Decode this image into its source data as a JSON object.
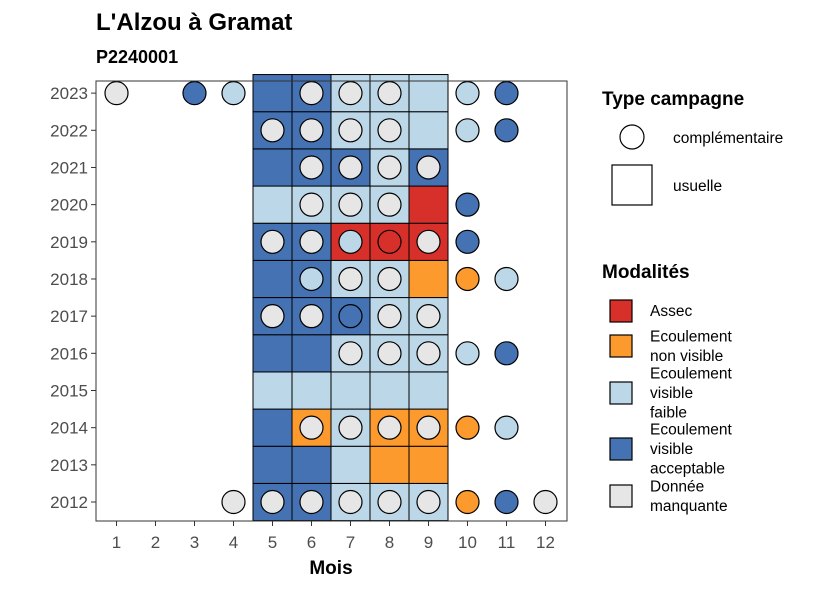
{
  "chart_data": {
    "type": "heatmap",
    "title": "L'Alzou à Gramat",
    "subtitle": "P2240001",
    "xlabel": "Mois",
    "ylabel": "",
    "x": [
      "1",
      "2",
      "3",
      "4",
      "5",
      "6",
      "7",
      "8",
      "9",
      "10",
      "11",
      "12"
    ],
    "y": [
      "2012",
      "2013",
      "2014",
      "2015",
      "2016",
      "2017",
      "2018",
      "2019",
      "2020",
      "2021",
      "2022",
      "2023"
    ],
    "colors": {
      "Assec": "#d7302a",
      "Ecoulement non visible": "#fc9a2e",
      "Ecoulement visible faible": "#bcd7e8",
      "Ecoulement visible acceptable": "#4472b3",
      "Donnée manquante": "#e6e6e6"
    },
    "legend": {
      "type_title": "Type campagne",
      "type_items": [
        "complémentaire",
        "usuelle"
      ],
      "mod_title": "Modalités",
      "mod_items": [
        {
          "lines": [
            "Assec"
          ],
          "color": "#d7302a"
        },
        {
          "lines": [
            "Ecoulement",
            "non visible"
          ],
          "color": "#fc9a2e"
        },
        {
          "lines": [
            "Ecoulement",
            "visible",
            "faible"
          ],
          "color": "#bcd7e8"
        },
        {
          "lines": [
            "Ecoulement",
            "visible",
            "acceptable"
          ],
          "color": "#4472b3"
        },
        {
          "lines": [
            "Donnée",
            "manquante"
          ],
          "color": "#e6e6e6"
        }
      ]
    },
    "usuelle": {
      "2012": [
        "#4472b3",
        "#4472b3",
        "#bcd7e8",
        "#bcd7e8",
        "#bcd7e8"
      ],
      "2013": [
        "#4472b3",
        "#4472b3",
        "#bcd7e8",
        "#fc9a2e",
        "#fc9a2e"
      ],
      "2014": [
        "#4472b3",
        "#fc9a2e",
        "#bcd7e8",
        "#fc9a2e",
        "#fc9a2e"
      ],
      "2015": [
        "#bcd7e8",
        "#bcd7e8",
        "#bcd7e8",
        "#bcd7e8",
        "#bcd7e8"
      ],
      "2016": [
        "#4472b3",
        "#4472b3",
        "#bcd7e8",
        "#bcd7e8",
        "#bcd7e8"
      ],
      "2017": [
        "#4472b3",
        "#4472b3",
        "#4472b3",
        "#bcd7e8",
        "#bcd7e8"
      ],
      "2018": [
        "#4472b3",
        "#4472b3",
        "#bcd7e8",
        "#bcd7e8",
        "#fc9a2e"
      ],
      "2019": [
        "#4472b3",
        "#4472b3",
        "#d7302a",
        "#d7302a",
        "#d7302a"
      ],
      "2020": [
        "#bcd7e8",
        "#bcd7e8",
        "#bcd7e8",
        "#bcd7e8",
        "#d7302a"
      ],
      "2021": [
        "#4472b3",
        "#4472b3",
        "#4472b3",
        "#bcd7e8",
        "#4472b3"
      ],
      "2022": [
        "#4472b3",
        "#4472b3",
        "#bcd7e8",
        "#bcd7e8",
        "#bcd7e8"
      ],
      "2023": [
        "#4472b3",
        "#4472b3",
        "#bcd7e8",
        "#bcd7e8",
        "#bcd7e8"
      ]
    },
    "complementaire": [
      {
        "year": "2012",
        "month": 4,
        "color": "#e6e6e6"
      },
      {
        "year": "2012",
        "month": 5,
        "color": "#e6e6e6"
      },
      {
        "year": "2012",
        "month": 6,
        "color": "#e6e6e6"
      },
      {
        "year": "2012",
        "month": 7,
        "color": "#e6e6e6"
      },
      {
        "year": "2012",
        "month": 8,
        "color": "#e6e6e6"
      },
      {
        "year": "2012",
        "month": 9,
        "color": "#e6e6e6"
      },
      {
        "year": "2012",
        "month": 10,
        "color": "#fc9a2e"
      },
      {
        "year": "2012",
        "month": 11,
        "color": "#4472b3"
      },
      {
        "year": "2012",
        "month": 12,
        "color": "#e6e6e6"
      },
      {
        "year": "2014",
        "month": 6,
        "color": "#e6e6e6"
      },
      {
        "year": "2014",
        "month": 7,
        "color": "#e6e6e6"
      },
      {
        "year": "2014",
        "month": 8,
        "color": "#e6e6e6"
      },
      {
        "year": "2014",
        "month": 9,
        "color": "#e6e6e6"
      },
      {
        "year": "2014",
        "month": 10,
        "color": "#fc9a2e"
      },
      {
        "year": "2014",
        "month": 11,
        "color": "#bcd7e8"
      },
      {
        "year": "2016",
        "month": 7,
        "color": "#e6e6e6"
      },
      {
        "year": "2016",
        "month": 8,
        "color": "#e6e6e6"
      },
      {
        "year": "2016",
        "month": 9,
        "color": "#e6e6e6"
      },
      {
        "year": "2016",
        "month": 10,
        "color": "#bcd7e8"
      },
      {
        "year": "2016",
        "month": 11,
        "color": "#4472b3"
      },
      {
        "year": "2017",
        "month": 5,
        "color": "#e6e6e6"
      },
      {
        "year": "2017",
        "month": 6,
        "color": "#e6e6e6"
      },
      {
        "year": "2017",
        "month": 7,
        "color": "#4472b3"
      },
      {
        "year": "2017",
        "month": 8,
        "color": "#e6e6e6"
      },
      {
        "year": "2017",
        "month": 9,
        "color": "#e6e6e6"
      },
      {
        "year": "2018",
        "month": 6,
        "color": "#bcd7e8"
      },
      {
        "year": "2018",
        "month": 7,
        "color": "#e6e6e6"
      },
      {
        "year": "2018",
        "month": 8,
        "color": "#e6e6e6"
      },
      {
        "year": "2018",
        "month": 10,
        "color": "#fc9a2e"
      },
      {
        "year": "2018",
        "month": 11,
        "color": "#bcd7e8"
      },
      {
        "year": "2019",
        "month": 5,
        "color": "#e6e6e6"
      },
      {
        "year": "2019",
        "month": 6,
        "color": "#e6e6e6"
      },
      {
        "year": "2019",
        "month": 7,
        "color": "#bcd7e8"
      },
      {
        "year": "2019",
        "month": 8,
        "color": "#d7302a"
      },
      {
        "year": "2019",
        "month": 9,
        "color": "#e6e6e6"
      },
      {
        "year": "2019",
        "month": 10,
        "color": "#4472b3"
      },
      {
        "year": "2020",
        "month": 6,
        "color": "#e6e6e6"
      },
      {
        "year": "2020",
        "month": 7,
        "color": "#e6e6e6"
      },
      {
        "year": "2020",
        "month": 8,
        "color": "#e6e6e6"
      },
      {
        "year": "2020",
        "month": 10,
        "color": "#4472b3"
      },
      {
        "year": "2021",
        "month": 6,
        "color": "#e6e6e6"
      },
      {
        "year": "2021",
        "month": 7,
        "color": "#e6e6e6"
      },
      {
        "year": "2021",
        "month": 8,
        "color": "#e6e6e6"
      },
      {
        "year": "2021",
        "month": 9,
        "color": "#e6e6e6"
      },
      {
        "year": "2022",
        "month": 5,
        "color": "#e6e6e6"
      },
      {
        "year": "2022",
        "month": 6,
        "color": "#e6e6e6"
      },
      {
        "year": "2022",
        "month": 7,
        "color": "#e6e6e6"
      },
      {
        "year": "2022",
        "month": 8,
        "color": "#e6e6e6"
      },
      {
        "year": "2022",
        "month": 10,
        "color": "#bcd7e8"
      },
      {
        "year": "2022",
        "month": 11,
        "color": "#4472b3"
      },
      {
        "year": "2023",
        "month": 1,
        "color": "#e6e6e6"
      },
      {
        "year": "2023",
        "month": 3,
        "color": "#4472b3"
      },
      {
        "year": "2023",
        "month": 4,
        "color": "#bcd7e8"
      },
      {
        "year": "2023",
        "month": 6,
        "color": "#e6e6e6"
      },
      {
        "year": "2023",
        "month": 7,
        "color": "#e6e6e6"
      },
      {
        "year": "2023",
        "month": 8,
        "color": "#e6e6e6"
      },
      {
        "year": "2023",
        "month": 10,
        "color": "#bcd7e8"
      },
      {
        "year": "2023",
        "month": 11,
        "color": "#4472b3"
      }
    ]
  }
}
